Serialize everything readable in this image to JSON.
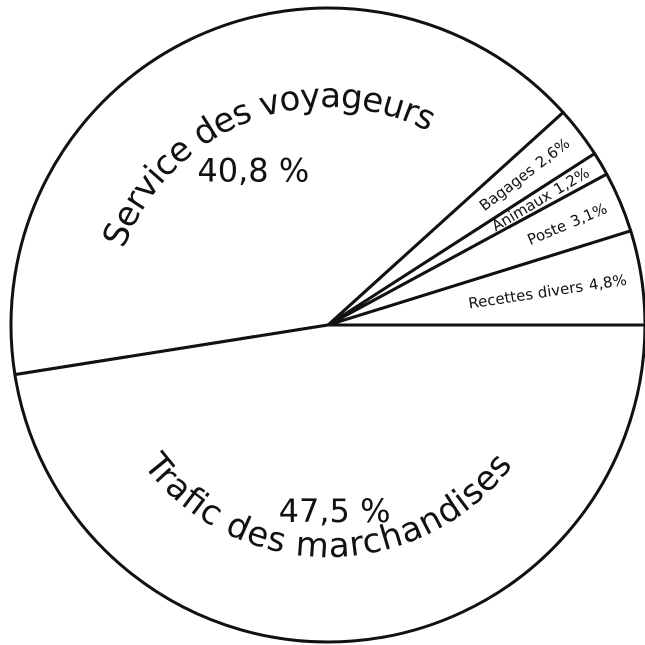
{
  "chart_data": {
    "type": "pie",
    "categories": [
      "Recettes divers",
      "Poste",
      "Animaux",
      "Bagages",
      "Service des voyageurs",
      "Trafic des marchandises"
    ],
    "values": [
      4.8,
      3.1,
      1.2,
      2.6,
      40.8,
      47.5
    ],
    "value_labels": [
      "4,8%",
      "3,1%",
      "1,2%",
      "2,6%",
      "40,8 %",
      "47,5 %"
    ],
    "color": "#ffffff"
  }
}
